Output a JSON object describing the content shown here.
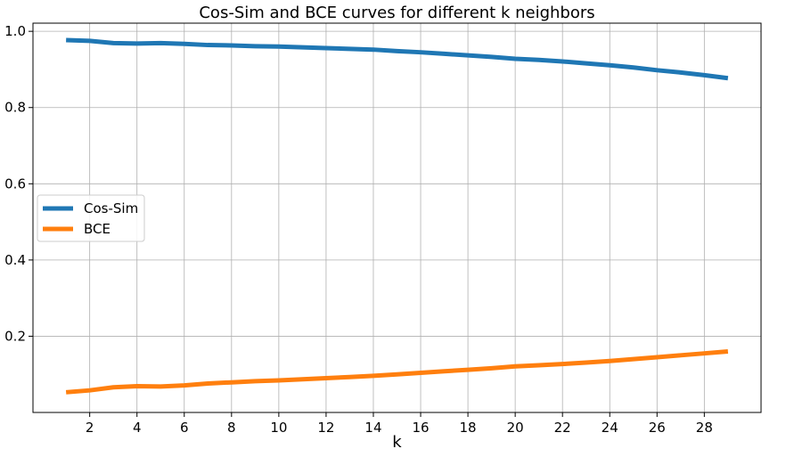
{
  "chart_data": {
    "type": "line",
    "title": "Cos-Sim and BCE curves for different k neighbors",
    "xlabel": "k",
    "ylabel": "",
    "x": [
      1,
      2,
      3,
      4,
      5,
      6,
      7,
      8,
      9,
      10,
      11,
      12,
      13,
      14,
      15,
      16,
      17,
      18,
      19,
      20,
      21,
      22,
      23,
      24,
      25,
      26,
      27,
      28,
      29
    ],
    "xlim": [
      -0.4,
      30.4
    ],
    "ylim": [
      0.0,
      1.0214
    ],
    "xticks": [
      2,
      4,
      6,
      8,
      10,
      12,
      14,
      16,
      18,
      20,
      22,
      24,
      26,
      28
    ],
    "xtick_labels": [
      "2",
      "4",
      "6",
      "8",
      "10",
      "12",
      "14",
      "16",
      "18",
      "20",
      "22",
      "24",
      "26",
      "28"
    ],
    "yticks": [
      0.2,
      0.4,
      0.6,
      0.8,
      1.0
    ],
    "ytick_labels": [
      "0.2",
      "0.4",
      "0.6",
      "0.8",
      "1.0"
    ],
    "grid": true,
    "legend_position": "center-left",
    "series": [
      {
        "name": "Cos-Sim",
        "color": "#1f77b4",
        "values": [
          0.977,
          0.975,
          0.969,
          0.968,
          0.969,
          0.967,
          0.964,
          0.963,
          0.961,
          0.96,
          0.958,
          0.956,
          0.954,
          0.952,
          0.948,
          0.945,
          0.941,
          0.937,
          0.933,
          0.928,
          0.925,
          0.921,
          0.916,
          0.911,
          0.905,
          0.898,
          0.892,
          0.885,
          0.877
        ]
      },
      {
        "name": "BCE",
        "color": "#ff7f0e",
        "values": [
          0.053,
          0.058,
          0.066,
          0.069,
          0.068,
          0.071,
          0.076,
          0.079,
          0.082,
          0.084,
          0.087,
          0.09,
          0.093,
          0.096,
          0.1,
          0.104,
          0.108,
          0.112,
          0.116,
          0.121,
          0.124,
          0.127,
          0.131,
          0.135,
          0.14,
          0.145,
          0.15,
          0.155,
          0.16
        ]
      }
    ]
  }
}
